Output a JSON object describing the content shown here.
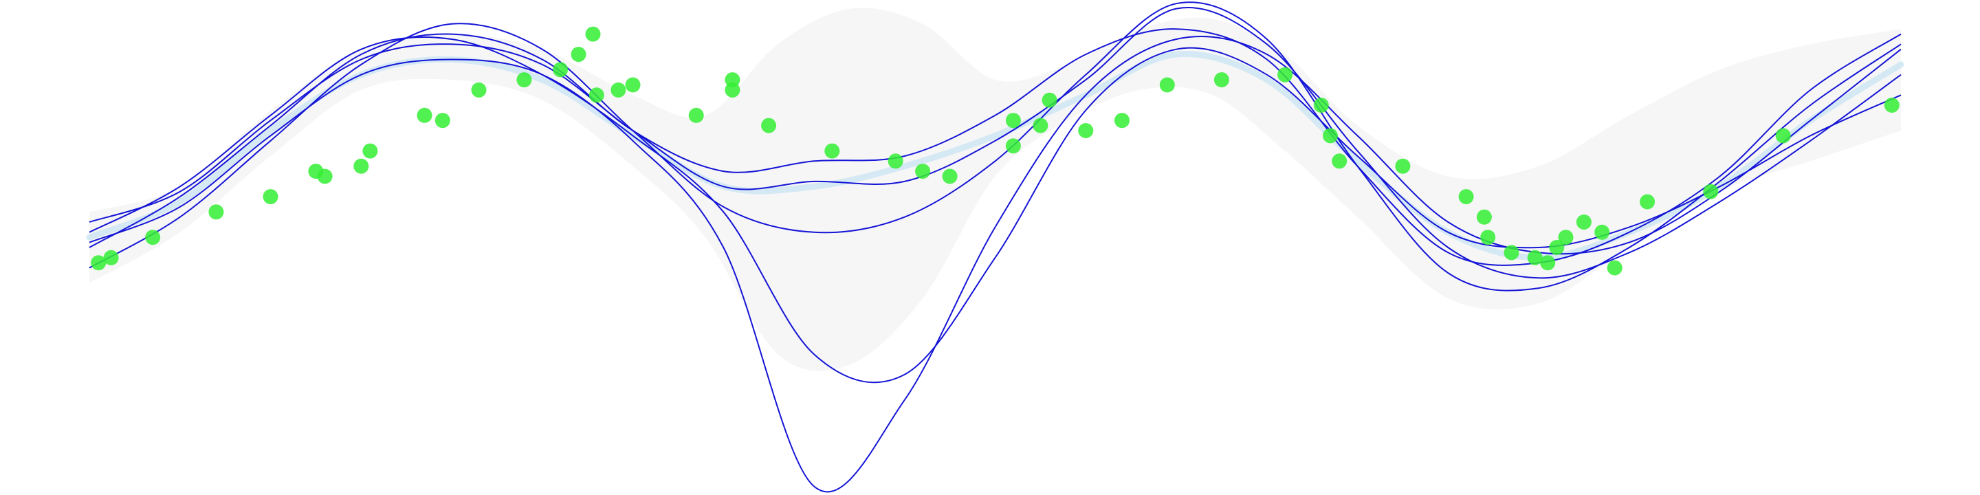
{
  "chart_data": {
    "type": "line",
    "title": "",
    "xlabel": "",
    "ylabel": "",
    "xlim": [
      0,
      10
    ],
    "ylim": [
      -3,
      1.6
    ],
    "grid": false,
    "legend": "none",
    "colors": {
      "background": "#ffffff",
      "band": "#f2f2f2",
      "mean": "#cfe6f5",
      "samples": "#1515d6",
      "points": "#33ee33"
    },
    "confidence_band": {
      "x": [
        0.0,
        0.5,
        1.0,
        1.5,
        2.0,
        2.5,
        3.0,
        3.4,
        3.8,
        4.2,
        4.6,
        5.0,
        5.4,
        5.8,
        6.2,
        6.6,
        7.0,
        7.5,
        8.0,
        8.5,
        9.0,
        9.5,
        10.0
      ],
      "upper": [
        -0.35,
        -0.1,
        0.65,
        1.25,
        1.4,
        1.25,
        0.8,
        0.6,
        1.3,
        1.65,
        1.5,
        0.95,
        1.1,
        1.45,
        1.55,
        1.2,
        0.5,
        0.0,
        0.1,
        0.6,
        1.05,
        1.3,
        1.45
      ],
      "lower": [
        -1.05,
        -0.55,
        0.2,
        0.85,
        0.95,
        0.75,
        0.1,
        -0.6,
        -1.75,
        -1.85,
        -1.2,
        0.0,
        0.55,
        0.85,
        0.8,
        0.25,
        -0.4,
        -1.2,
        -1.25,
        -0.7,
        -0.15,
        0.15,
        0.45
      ]
    },
    "mean_curve": {
      "x": [
        0.0,
        0.5,
        1.0,
        1.5,
        2.0,
        2.5,
        3.0,
        3.5,
        4.0,
        4.5,
        5.0,
        5.5,
        6.0,
        6.5,
        7.0,
        7.5,
        8.0,
        8.5,
        9.0,
        9.5,
        10.0
      ],
      "y": [
        -0.6,
        -0.25,
        0.45,
        1.0,
        1.15,
        0.95,
        0.4,
        -0.1,
        -0.1,
        0.1,
        0.4,
        0.8,
        1.2,
        0.95,
        0.15,
        -0.55,
        -0.8,
        -0.55,
        -0.1,
        0.55,
        1.1
      ]
    },
    "samples": [
      {
        "y": [
          -0.9,
          -0.4,
          0.35,
          1.1,
          1.5,
          1.25,
          0.45,
          -0.3,
          -0.55,
          -0.4,
          0.15,
          1.0,
          1.7,
          1.35,
          0.1,
          -0.95,
          -1.1,
          -0.7,
          -0.05,
          0.7,
          1.3
        ]
      },
      {
        "y": [
          -0.7,
          -0.2,
          0.5,
          1.2,
          1.4,
          1.15,
          0.45,
          0.05,
          0.15,
          0.2,
          0.6,
          1.2,
          1.45,
          1.15,
          0.1,
          -0.75,
          -0.85,
          -0.55,
          0.0,
          0.85,
          1.4
        ]
      },
      {
        "y": [
          -0.55,
          -0.1,
          0.6,
          1.25,
          1.35,
          1.0,
          0.4,
          -0.35,
          -1.75,
          -1.95,
          -0.8,
          0.65,
          1.25,
          1.0,
          0.2,
          -0.55,
          -0.7,
          -0.5,
          -0.1,
          0.4,
          0.8
        ]
      },
      {
        "y": [
          -0.45,
          -0.15,
          0.55,
          1.15,
          1.3,
          1.1,
          0.45,
          -0.1,
          -0.05,
          -0.05,
          0.35,
          0.95,
          1.65,
          1.3,
          0.25,
          -0.7,
          -1.0,
          -0.75,
          -0.25,
          0.35,
          1.0
        ]
      },
      {
        "y": [
          -0.65,
          -0.3,
          0.4,
          1.0,
          1.15,
          1.0,
          0.35,
          -0.7,
          -3.05,
          -2.2,
          -0.5,
          0.8,
          1.35,
          1.2,
          0.4,
          -0.45,
          -0.75,
          -0.65,
          -0.15,
          0.55,
          1.25
        ]
      }
    ],
    "points": {
      "x": [
        0.05,
        0.12,
        0.35,
        0.7,
        1.0,
        1.25,
        1.3,
        1.5,
        1.55,
        1.85,
        1.95,
        2.15,
        2.4,
        2.6,
        2.7,
        2.78,
        2.8,
        2.92,
        3.0,
        3.35,
        3.55,
        3.55,
        3.75,
        4.1,
        4.45,
        4.6,
        4.75,
        5.1,
        5.1,
        5.25,
        5.3,
        5.5,
        5.7,
        5.95,
        6.25,
        6.6,
        6.8,
        6.85,
        6.9,
        7.25,
        7.6,
        7.7,
        7.72,
        7.85,
        7.98,
        8.05,
        8.1,
        8.15,
        8.25,
        8.35,
        8.42,
        8.6,
        8.95,
        9.35,
        9.95
      ],
      "y": [
        -0.85,
        -0.8,
        -0.6,
        -0.35,
        -0.2,
        0.05,
        0.0,
        0.1,
        0.25,
        0.6,
        0.55,
        0.85,
        0.95,
        1.05,
        1.2,
        1.4,
        0.8,
        0.85,
        0.9,
        0.6,
        0.85,
        0.95,
        0.5,
        0.25,
        0.15,
        0.05,
        0.0,
        0.3,
        0.55,
        0.5,
        0.75,
        0.45,
        0.55,
        0.9,
        0.95,
        1.0,
        0.7,
        0.4,
        0.15,
        0.1,
        -0.2,
        -0.4,
        -0.6,
        -0.75,
        -0.8,
        -0.85,
        -0.7,
        -0.6,
        -0.45,
        -0.55,
        -0.9,
        -0.25,
        -0.15,
        0.4,
        0.7
      ]
    }
  }
}
